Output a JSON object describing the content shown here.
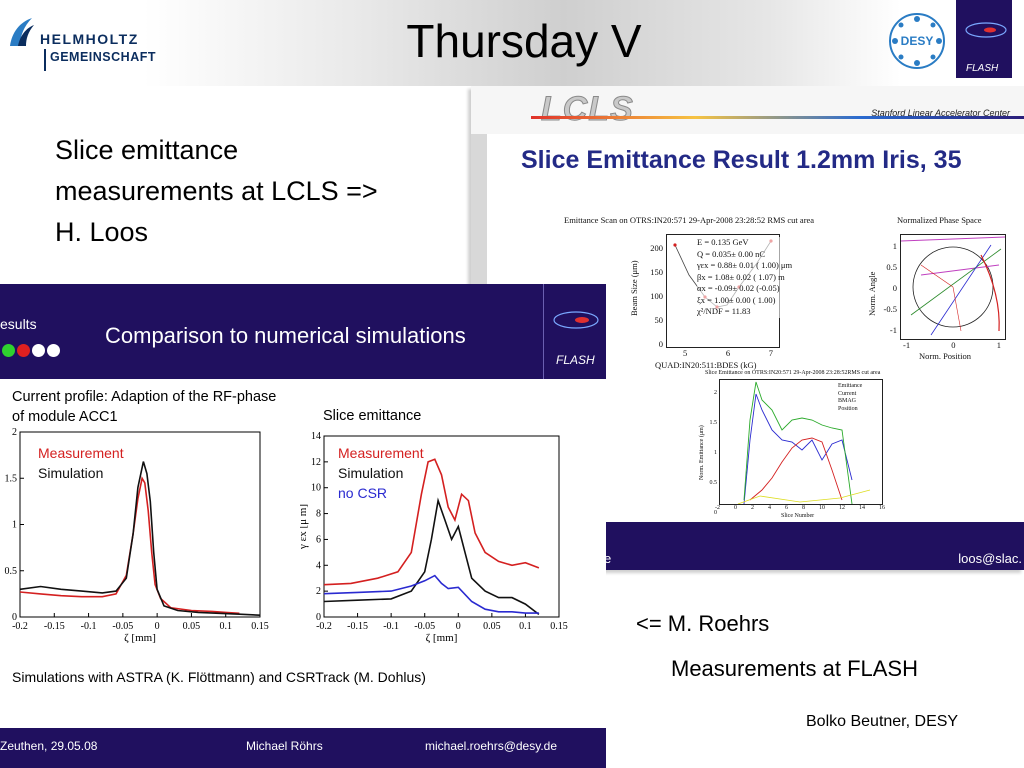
{
  "header": {
    "title": "Thursday V",
    "helmholtz_line1": "HELMHOLTZ",
    "helmholtz_line2": "GEMEINSCHAFT",
    "desy_logo_text": "DESY",
    "flash_logo_text": "FLASH"
  },
  "intro": {
    "line1": "Slice emittance",
    "line2": "measurements at LCLS =>",
    "line3": "H. Loos"
  },
  "lcls_slide": {
    "logo_text": "LCLS",
    "institution": "Stanford Linear Accelerator Center",
    "title": "Slice Emittance Result 1.2mm Iris, 35",
    "scan_title": "Emittance Scan on OTRS:IN20:571   29-Apr-2008 23:28:52 RMS cut area",
    "scan_ylabel": "Beam Size  (μm)",
    "scan_xlabel": "QUAD:IN20:511:BDES  (kG)",
    "scan_yticks": [
      "200",
      "150",
      "100",
      "50",
      "0"
    ],
    "scan_xticks": [
      "5",
      "6",
      "7"
    ],
    "scan_params": [
      "E =  0.135 GeV",
      "Q =  0.035± 0.00 nC",
      "γεx =   0.88± 0.01 ( 1.00) μm",
      "βx =   1.08± 0.02 ( 1.07) m",
      "αx =  -0.09± 0.02 (-0.05)",
      "ξx =   1.00± 0.00 ( 1.00)",
      "χ²/NDF =  11.83"
    ],
    "phase_title": "Normalized Phase Space",
    "phase_ylabel": "Norm. Angle",
    "phase_xlabel": "Norm. Position",
    "phase_yticks": [
      "1",
      "0.5",
      "0",
      "-0.5",
      "-1"
    ],
    "phase_xticks": [
      "-1",
      "0",
      "1"
    ],
    "slice_title": "Slice Emittance on OTRS:IN20:571  29-Apr-2008 23:28:52RMS cut area",
    "slice_ylabel": "Norm. Emittance (μm)",
    "slice_xlabel": "Slice Number",
    "slice_yticks": [
      "2",
      "1.5",
      "1",
      "0.5",
      "0"
    ],
    "slice_xticks": [
      "-2",
      "0",
      "2",
      "4",
      "6",
      "8",
      "10",
      "12",
      "14",
      "16"
    ],
    "slice_legend": [
      "Emittance",
      "Current",
      "BMAG",
      "Position"
    ],
    "footer_left": "e",
    "footer_right": "loos@slac."
  },
  "flash_slide": {
    "results_label": "esults",
    "title": "Comparison to numerical simulations",
    "logo_text": "FLASH",
    "dots_colors": [
      "#2fd12f",
      "#e02020",
      "#ffffff",
      "#ffffff"
    ],
    "current_caption": "Current profile: Adaption of the RF-phase of module ACC1",
    "slice_caption": "Slice emittance",
    "simulation_note": "Simulations with ASTRA (K. Flöttmann) and CSRTrack (M. Dohlus)",
    "footer_date": "Zeuthen, 29.05.08",
    "footer_name": "Michael Röhrs",
    "footer_email": "michael.roehrs@desy.de"
  },
  "chart_data": [
    {
      "type": "line",
      "title": "Current profile: Adaption of the RF-phase of module ACC1",
      "xlabel": "ζ [mm]",
      "ylabel": "",
      "xlim": [
        -0.2,
        0.15
      ],
      "ylim": [
        0,
        2
      ],
      "xticks": [
        "-0.2",
        "-0.15",
        "-0.1",
        "-0.05",
        "0",
        "0.05",
        "0.1",
        "0.15"
      ],
      "yticks": [
        "0",
        "0.5",
        "1",
        "1.5",
        "2"
      ],
      "series": [
        {
          "name": "Measurement",
          "color": "#d42020",
          "x": [
            -0.2,
            -0.17,
            -0.14,
            -0.11,
            -0.08,
            -0.06,
            -0.045,
            -0.035,
            -0.028,
            -0.022,
            -0.018,
            -0.013,
            -0.008,
            -0.003,
            0.005,
            0.02,
            0.05,
            0.08,
            0.1,
            0.12
          ],
          "y": [
            0.27,
            0.25,
            0.23,
            0.22,
            0.22,
            0.25,
            0.45,
            0.9,
            1.28,
            1.5,
            1.45,
            1.15,
            0.7,
            0.35,
            0.2,
            0.1,
            0.07,
            0.06,
            0.05,
            0.04
          ]
        },
        {
          "name": "Simulation",
          "color": "#111111",
          "x": [
            -0.2,
            -0.17,
            -0.14,
            -0.11,
            -0.08,
            -0.06,
            -0.045,
            -0.035,
            -0.028,
            -0.02,
            -0.015,
            -0.01,
            -0.005,
            0.0,
            0.01,
            0.03,
            0.06,
            0.09,
            0.12,
            0.15
          ],
          "y": [
            0.3,
            0.33,
            0.3,
            0.28,
            0.26,
            0.28,
            0.42,
            0.9,
            1.4,
            1.68,
            1.55,
            1.25,
            0.7,
            0.3,
            0.12,
            0.07,
            0.05,
            0.04,
            0.03,
            0.02
          ]
        }
      ]
    },
    {
      "type": "line",
      "title": "Slice emittance",
      "xlabel": "ζ [mm]",
      "ylabel": "γ εx [μ m]",
      "xlim": [
        -0.2,
        0.15
      ],
      "ylim": [
        0,
        14
      ],
      "xticks": [
        "-0.2",
        "-0.15",
        "-0.1",
        "-0.05",
        "0",
        "0.05",
        "0.1",
        "0.15"
      ],
      "yticks": [
        "0",
        "2",
        "4",
        "6",
        "8",
        "10",
        "12",
        "14"
      ],
      "series": [
        {
          "name": "Measurement",
          "color": "#d42020",
          "x": [
            -0.2,
            -0.16,
            -0.12,
            -0.09,
            -0.07,
            -0.055,
            -0.045,
            -0.035,
            -0.025,
            -0.015,
            -0.005,
            0.005,
            0.015,
            0.025,
            0.04,
            0.06,
            0.08,
            0.1,
            0.12
          ],
          "y": [
            2.5,
            2.6,
            3.0,
            3.5,
            5.0,
            9.5,
            12.0,
            12.2,
            11.0,
            8.5,
            7.5,
            9.5,
            9.0,
            6.5,
            5.0,
            4.3,
            4.0,
            4.2,
            3.8
          ]
        },
        {
          "name": "Simulation",
          "color": "#111111",
          "x": [
            -0.2,
            -0.15,
            -0.1,
            -0.07,
            -0.05,
            -0.04,
            -0.03,
            -0.02,
            -0.01,
            0.0,
            0.01,
            0.02,
            0.04,
            0.06,
            0.08,
            0.1,
            0.12
          ],
          "y": [
            1.2,
            1.3,
            1.4,
            2.0,
            3.5,
            6.0,
            9.0,
            7.5,
            6.0,
            7.0,
            5.0,
            3.0,
            2.0,
            1.5,
            1.5,
            1.0,
            0.2
          ]
        },
        {
          "name": "no CSR",
          "color": "#2a2ad0",
          "x": [
            -0.2,
            -0.15,
            -0.1,
            -0.07,
            -0.05,
            -0.035,
            -0.025,
            -0.015,
            0.0,
            0.02,
            0.04,
            0.06,
            0.08,
            0.1,
            0.12
          ],
          "y": [
            1.8,
            1.9,
            2.0,
            2.4,
            2.8,
            3.2,
            2.6,
            2.2,
            2.3,
            1.2,
            0.6,
            0.4,
            0.4,
            0.3,
            0.3
          ]
        }
      ]
    }
  ],
  "bottom_right": {
    "roehrs": "<= M. Roehrs",
    "measurements": "Measurements at FLASH",
    "author": "Bolko Beutner, DESY"
  }
}
